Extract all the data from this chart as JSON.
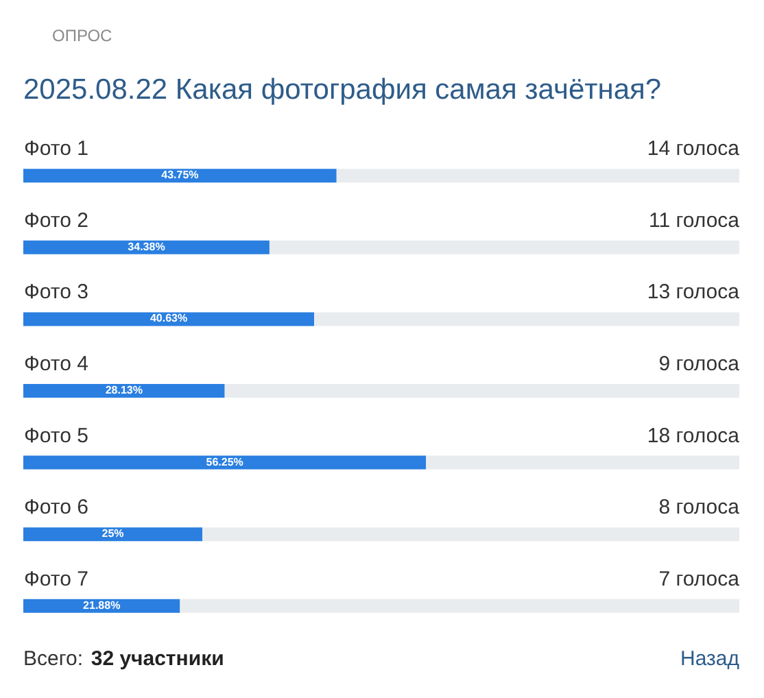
{
  "chart_data": {
    "type": "bar",
    "orientation": "horizontal",
    "stacked": true,
    "title": "2025.08.22 Какая фотография самая зачётная?",
    "categories": [
      "Фото 1",
      "Фото 2",
      "Фото 3",
      "Фото 4",
      "Фото 5",
      "Фото 6",
      "Фото 7"
    ],
    "series": [
      {
        "color": "#2a7fe0",
        "values": [
          43.75,
          34.38,
          40.63,
          28.13,
          56.25,
          25,
          21.88
        ],
        "value_labels": [
          "43.75%",
          "34.38%",
          "40.63%",
          "28.13%",
          "56.25%",
          "25%",
          "21.88%"
        ]
      },
      {
        "color": "#e9ecef",
        "values": [
          56.25,
          65.62,
          59.37,
          71.87,
          43.75,
          75,
          78.12
        ]
      }
    ],
    "xlim": [
      0,
      100
    ],
    "tick_labels": "y",
    "annotations": [
      "ОПРОС",
      {
        "text": "14 голоса",
        "y": "Фото 1"
      },
      {
        "text": "11 голоса",
        "y": "Фото 2"
      },
      {
        "text": "13 голоса",
        "y": "Фото 3"
      },
      {
        "text": "9 голоса",
        "y": "Фото 4"
      },
      {
        "text": "18 голоса",
        "y": "Фото 5"
      },
      {
        "text": "8 голоса",
        "y": "Фото 6"
      },
      {
        "text": "7 голоса",
        "y": "Фото 7"
      },
      "Всего: 32 участники",
      "Назад"
    ]
  }
}
